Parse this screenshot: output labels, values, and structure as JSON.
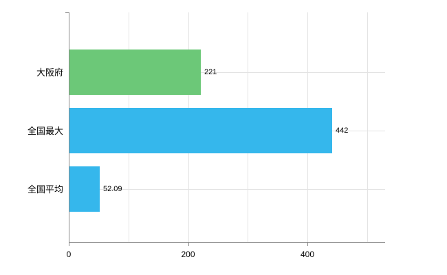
{
  "chart_data": {
    "type": "bar",
    "orientation": "horizontal",
    "title": "",
    "xlabel": "",
    "ylabel": "",
    "categories": [
      "大阪府",
      "全国最大",
      "全国平均"
    ],
    "values": [
      221,
      442,
      52.09
    ],
    "value_labels": [
      "221",
      "442",
      "52.09"
    ],
    "bar_colors": [
      "#6cc878",
      "#35b7ec",
      "#35b7ec"
    ],
    "xlim": [
      0,
      530
    ],
    "x_ticks": [
      0,
      200,
      400
    ],
    "x_tick_labels": [
      "0",
      "200",
      "400"
    ],
    "gridline_interval": 100,
    "grid": true,
    "legend_position": "none"
  },
  "colors": {
    "axis": "#8a8a8a",
    "grid": "#e3e3e3",
    "text": "#000000",
    "background": "#ffffff"
  }
}
